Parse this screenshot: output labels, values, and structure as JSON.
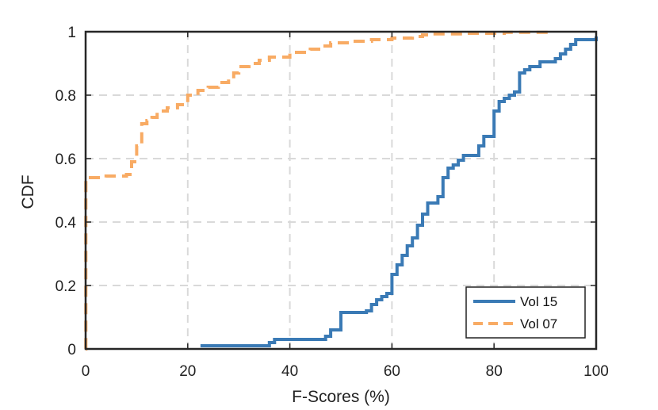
{
  "chart_data": {
    "type": "line",
    "title": "",
    "xlabel": "F-Scores (%)",
    "ylabel": "CDF",
    "xlim": [
      0,
      100
    ],
    "ylim": [
      0,
      1
    ],
    "xticks": [
      0,
      20,
      40,
      60,
      80,
      100
    ],
    "yticks": [
      0,
      0.2,
      0.4,
      0.6,
      0.8,
      1
    ],
    "xtick_labels": [
      "0",
      "20",
      "40",
      "60",
      "80",
      "100"
    ],
    "ytick_labels": [
      "0",
      "0.2",
      "0.4",
      "0.6",
      "0.8",
      "1"
    ],
    "grid": true,
    "legend_position": "bottom-right",
    "series": [
      {
        "name": "Vol 15",
        "color": "#3a7ab5",
        "style": "solid",
        "x": [
          22.5,
          35,
          36,
          37,
          46,
          47,
          48,
          50,
          55,
          56,
          57,
          58,
          59,
          60,
          61,
          62,
          63,
          64,
          65,
          66,
          67,
          69,
          70,
          71,
          72,
          73,
          74,
          77,
          78,
          80,
          81,
          82,
          83,
          84,
          85,
          86,
          87,
          89,
          92,
          93,
          94,
          95,
          96,
          100
        ],
        "y": [
          0.01,
          0.01,
          0.02,
          0.03,
          0.03,
          0.04,
          0.06,
          0.115,
          0.12,
          0.14,
          0.155,
          0.165,
          0.175,
          0.235,
          0.265,
          0.295,
          0.325,
          0.35,
          0.39,
          0.425,
          0.46,
          0.48,
          0.54,
          0.57,
          0.58,
          0.595,
          0.61,
          0.64,
          0.67,
          0.75,
          0.78,
          0.79,
          0.8,
          0.81,
          0.87,
          0.88,
          0.89,
          0.905,
          0.915,
          0.93,
          0.945,
          0.96,
          0.975,
          0.985
        ]
      },
      {
        "name": "Vol 07",
        "color": "#f8ab64",
        "style": "dashed",
        "x": [
          0,
          0.05,
          4,
          8,
          9,
          10,
          11,
          12,
          13,
          14,
          16,
          18,
          20,
          22,
          24,
          26,
          28,
          29,
          30,
          32,
          34,
          36,
          40,
          44,
          46,
          48,
          52,
          56,
          60,
          64,
          66,
          68,
          74,
          82,
          91
        ],
        "y": [
          0,
          0.54,
          0.545,
          0.55,
          0.59,
          0.64,
          0.71,
          0.72,
          0.73,
          0.75,
          0.76,
          0.77,
          0.8,
          0.815,
          0.825,
          0.84,
          0.85,
          0.87,
          0.89,
          0.9,
          0.91,
          0.92,
          0.935,
          0.945,
          0.955,
          0.965,
          0.97,
          0.975,
          0.98,
          0.985,
          0.99,
          0.993,
          0.995,
          0.998,
          1.0
        ]
      }
    ]
  }
}
